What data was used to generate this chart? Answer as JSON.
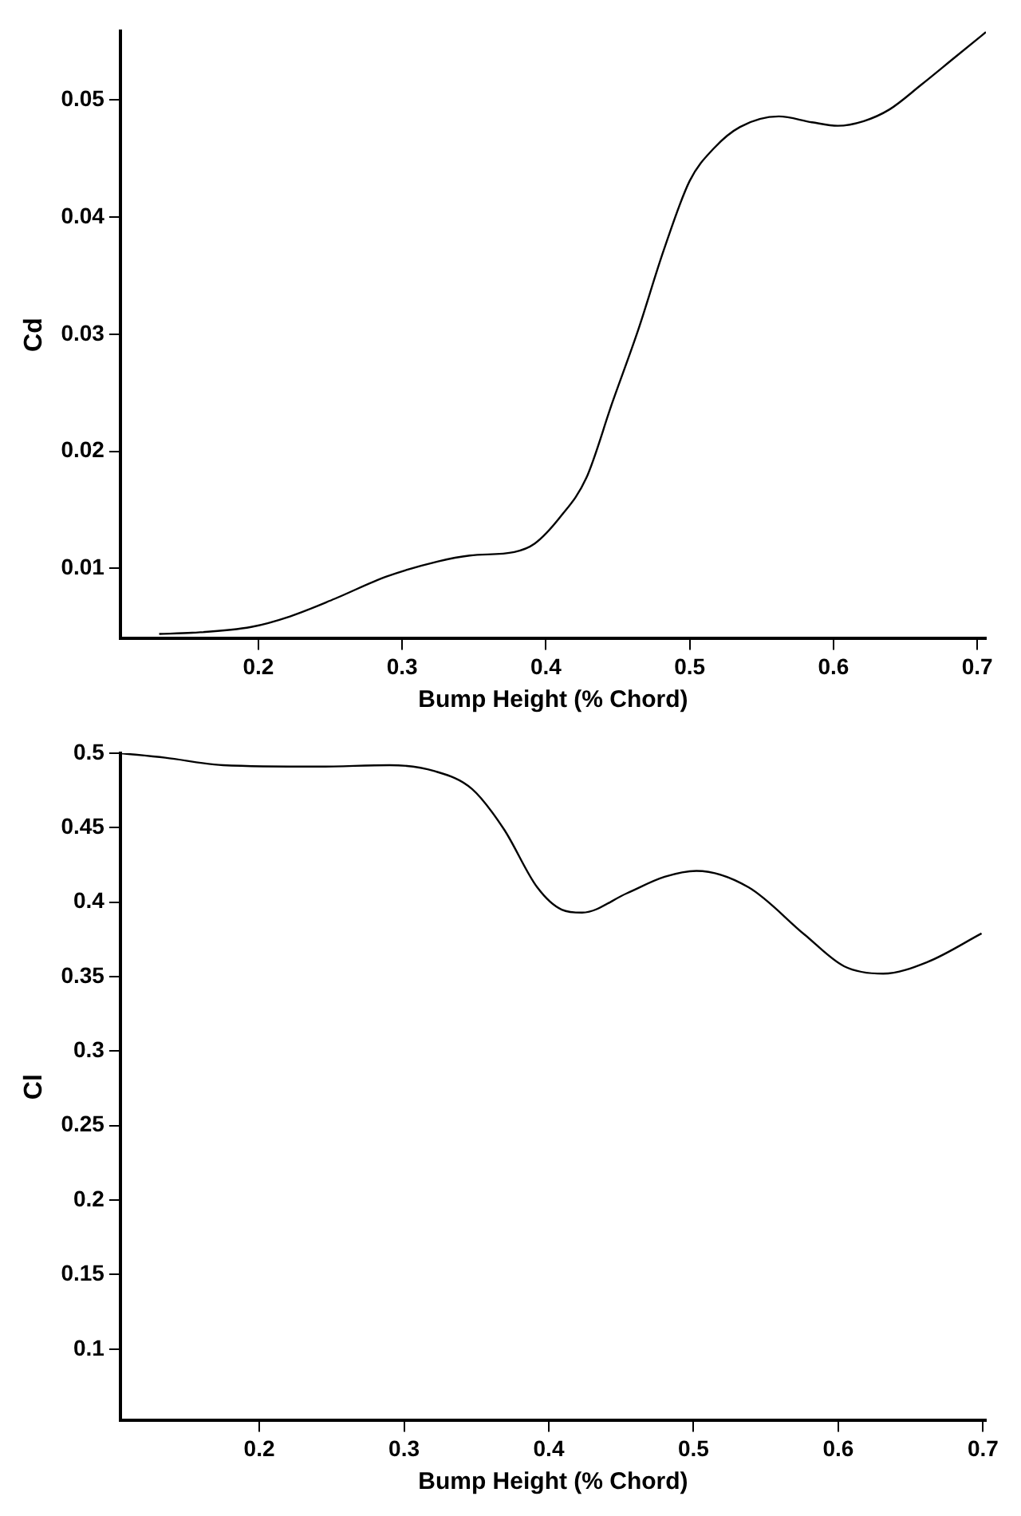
{
  "chart_data": [
    {
      "type": "line",
      "xlabel": "Bump Height (% Chord)",
      "ylabel": "Cd",
      "xlim": [
        0.104,
        0.706
      ],
      "xticks": [
        0.2,
        0.3,
        0.4,
        0.5,
        0.6,
        0.7
      ],
      "ylim": [
        0.004,
        0.0559
      ],
      "yticks": [
        0.01,
        0.02,
        0.03,
        0.04,
        0.05
      ],
      "grid": false,
      "legend": false,
      "marker": "none",
      "line_style": "solid",
      "series": [
        {
          "color": "#000000",
          "x": [
            0.131,
            0.154,
            0.195,
            0.222,
            0.253,
            0.289,
            0.325,
            0.347,
            0.378,
            0.392,
            0.41,
            0.428,
            0.446,
            0.464,
            0.482,
            0.5,
            0.517,
            0.535,
            0.562,
            0.585,
            0.603,
            0.621,
            0.639,
            0.661,
            0.684,
            0.706
          ],
          "values": [
            0.0044,
            0.0045,
            0.005,
            0.0059,
            0.0074,
            0.0093,
            0.0106,
            0.0111,
            0.0114,
            0.0121,
            0.0144,
            0.0177,
            0.0241,
            0.0303,
            0.0372,
            0.0431,
            0.0459,
            0.0477,
            0.0486,
            0.0481,
            0.0478,
            0.0482,
            0.0492,
            0.0513,
            0.0536,
            0.0558
          ]
        }
      ]
    },
    {
      "type": "line",
      "xlabel": "Bump Height (% Chord)",
      "ylabel": "Cl",
      "xlim": [
        0.104,
        0.702
      ],
      "xticks": [
        0.2,
        0.3,
        0.4,
        0.5,
        0.6,
        0.7
      ],
      "ylim": [
        0.052,
        0.5
      ],
      "yticks": [
        0.1,
        0.15,
        0.2,
        0.25,
        0.3,
        0.35,
        0.4,
        0.45,
        0.5
      ],
      "grid": false,
      "legend": false,
      "marker": "none",
      "line_style": "solid",
      "series": [
        {
          "color": "#000000",
          "x": [
            0.104,
            0.135,
            0.175,
            0.241,
            0.29,
            0.321,
            0.347,
            0.369,
            0.392,
            0.409,
            0.423,
            0.454,
            0.48,
            0.502,
            0.538,
            0.577,
            0.604,
            0.631,
            0.662,
            0.699
          ],
          "values": [
            0.5,
            0.497,
            0.492,
            0.491,
            0.492,
            0.488,
            0.476,
            0.449,
            0.41,
            0.395,
            0.393,
            0.406,
            0.417,
            0.421,
            0.41,
            0.378,
            0.357,
            0.352,
            0.36,
            0.379
          ]
        }
      ]
    }
  ]
}
